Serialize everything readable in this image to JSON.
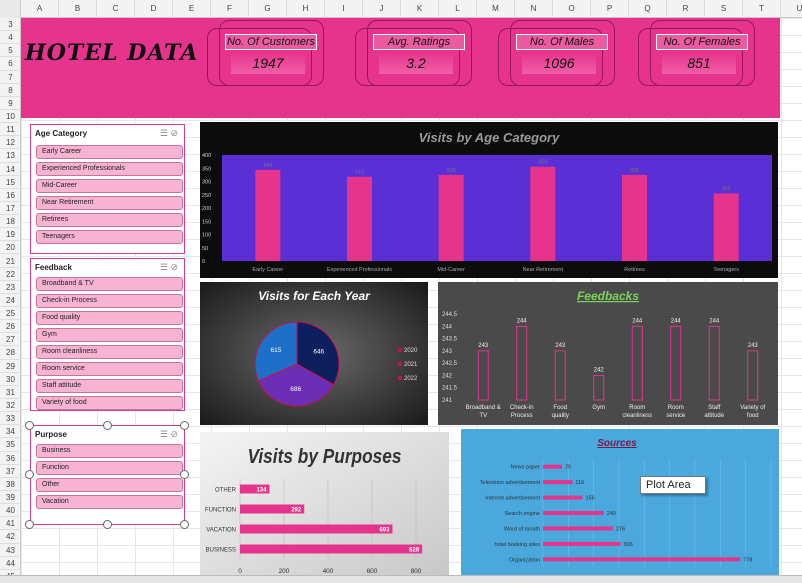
{
  "columns": [
    "A",
    "B",
    "C",
    "D",
    "E",
    "F",
    "G",
    "H",
    "I",
    "J",
    "K",
    "L",
    "M",
    "N",
    "O",
    "P",
    "Q",
    "R",
    "S",
    "T",
    "U"
  ],
  "rows": [
    "3",
    "4",
    "5",
    "6",
    "7",
    "8",
    "9",
    "10",
    "11",
    "12",
    "13",
    "14",
    "15",
    "16",
    "17",
    "18",
    "19",
    "20",
    "21",
    "22",
    "23",
    "24",
    "25",
    "26",
    "27",
    "28",
    "29",
    "30",
    "31",
    "32",
    "33",
    "34",
    "35",
    "36",
    "37",
    "38",
    "39",
    "40",
    "41",
    "42",
    "43",
    "44",
    "45"
  ],
  "header": {
    "title": "HOTEL DATA",
    "kpis": [
      {
        "label": "No. Of Customers",
        "value": "1947"
      },
      {
        "label": "Avg. Ratings",
        "value": "3.2"
      },
      {
        "label": "No. Of Males",
        "value": "1096"
      },
      {
        "label": "No. Of Females",
        "value": "851"
      }
    ]
  },
  "slicers": {
    "age": {
      "title": "Age Category",
      "items": [
        "Early Career",
        "Experienced Professionals",
        "Mid-Career",
        "Near Retirement",
        "Retirees",
        "Teenagers"
      ]
    },
    "feedback": {
      "title": "Feedback",
      "items": [
        "Broadband & TV",
        "Check-in Process",
        "Food quality",
        "Gym",
        "Room cleanliness",
        "Room service",
        "Staff attitude",
        "Variety of food"
      ]
    },
    "purpose": {
      "title": "Purpose",
      "items": [
        "Business",
        "Function",
        "Other",
        "Vacation"
      ]
    }
  },
  "tooltip": "Plot Area",
  "colors": {
    "pink": "#e6338c",
    "purple": "#5a2fd6",
    "dark": "#0c0c0c",
    "grey": "#4a4a4a",
    "blue": "#4aa8dc"
  },
  "chart_data": [
    {
      "type": "bar",
      "title": "Visits by Age Category",
      "categories": [
        "Early Career",
        "Experienced Professionals",
        "Mid-Career",
        "Near Retirement",
        "Retirees",
        "Teenagers"
      ],
      "values": [
        344,
        318,
        325,
        356,
        325,
        255
      ],
      "yticks": [
        "0",
        "50",
        "100",
        "150",
        "200",
        "250",
        "300",
        "350",
        "400"
      ],
      "ylim": [
        0,
        400
      ]
    },
    {
      "type": "pie",
      "title": "Visits for Each Year",
      "labels": [
        "2020",
        "2021",
        "2022"
      ],
      "values": [
        646,
        686,
        615
      ],
      "colors": [
        "#0d1f5c",
        "#6b2fb5",
        "#1d6fc7"
      ]
    },
    {
      "type": "bar",
      "title": "Feedbacks",
      "categories": [
        "Broadband & TV",
        "Check-in Process",
        "Food quality",
        "Gym",
        "Room cleanliness",
        "Room service",
        "Staff attitude",
        "Variety of food"
      ],
      "values": [
        243,
        244,
        243,
        242,
        244,
        244,
        244,
        243
      ],
      "yticks": [
        "241",
        "241.5",
        "242",
        "242.5",
        "243",
        "243.5",
        "244",
        "244.5"
      ],
      "ylim": [
        241,
        244.5
      ]
    },
    {
      "type": "bar",
      "title": "Visits by Purposes",
      "orientation": "horizontal",
      "categories": [
        "OTHER",
        "FUNCTION",
        "VACATION",
        "BUSINESS"
      ],
      "values": [
        134,
        292,
        693,
        828
      ],
      "xticks": [
        "0",
        "200",
        "400",
        "600",
        "800"
      ],
      "xlim": [
        0,
        900
      ]
    },
    {
      "type": "bar",
      "title": "Sources",
      "orientation": "horizontal",
      "categories": [
        "News paper",
        "Television advertisement",
        "Internet advertisement",
        "Search engine",
        "Word of mouth",
        "hotel booking sites",
        "Organization"
      ],
      "values": [
        75,
        116,
        156,
        240,
        276,
        306,
        778
      ],
      "xlim": [
        0,
        900
      ]
    }
  ]
}
